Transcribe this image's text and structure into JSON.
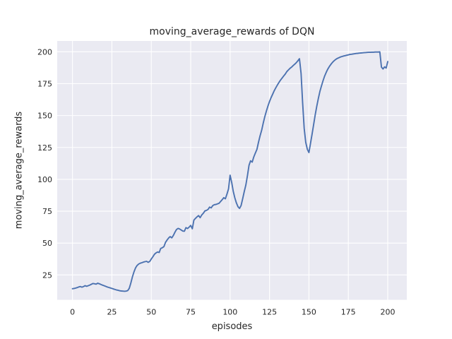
{
  "chart_data": {
    "type": "line",
    "title": "moving_average_rewards of DQN",
    "xlabel": "episodes",
    "ylabel": "moving_average_rewards",
    "x_ticks": [
      0,
      25,
      50,
      75,
      100,
      125,
      150,
      175,
      200
    ],
    "y_ticks": [
      25,
      50,
      75,
      100,
      125,
      150,
      175,
      200
    ],
    "xlim": [
      -9.7,
      212.1
    ],
    "ylim": [
      5.5,
      208.5
    ],
    "grid": true,
    "legend_position": "none",
    "line_color": "#4c72b0",
    "plot_bg_color": "#eaeaf2",
    "grid_color": "#ffffff",
    "text_color": "#262626",
    "series": [
      {
        "name": "moving_average_rewards",
        "x_start": 0,
        "x_step": 1,
        "values": [
          14.2,
          14.4,
          14.7,
          15.1,
          15.6,
          15.9,
          15.4,
          15.9,
          16.6,
          16.1,
          16.6,
          17.1,
          17.7,
          18.3,
          18.1,
          17.8,
          18.5,
          18.1,
          17.5,
          17.0,
          16.6,
          16.1,
          15.6,
          15.2,
          14.8,
          14.4,
          14.0,
          13.6,
          13.2,
          12.9,
          12.6,
          12.4,
          12.3,
          12.2,
          12.3,
          12.7,
          14.5,
          18.5,
          23.5,
          27.4,
          30.5,
          32.4,
          33.6,
          34.2,
          34.6,
          35.1,
          35.4,
          35.7,
          34.9,
          35.6,
          37.5,
          39.3,
          41.2,
          42.3,
          43.0,
          42.6,
          45.8,
          46.4,
          47.2,
          50.5,
          52.4,
          54.0,
          55.1,
          54.1,
          56.0,
          58.5,
          60.6,
          61.5,
          61.0,
          60.2,
          59.4,
          59.3,
          62.1,
          61.4,
          62.5,
          63.8,
          61.2,
          67.9,
          69.3,
          70.6,
          71.6,
          69.9,
          72.1,
          73.4,
          75.2,
          75.6,
          76.4,
          78.2,
          77.6,
          79.4,
          80.1,
          80.3,
          80.8,
          81.2,
          82.6,
          84.1,
          85.6,
          84.7,
          88.5,
          92.5,
          103.2,
          97.5,
          90.5,
          85.5,
          81.5,
          78.5,
          77.2,
          79.5,
          85.0,
          90.5,
          95.5,
          103.0,
          111.0,
          114.5,
          113.5,
          117.5,
          120.5,
          123.5,
          129.0,
          134.0,
          138.5,
          144.0,
          149.0,
          153.5,
          157.5,
          161.0,
          164.0,
          166.8,
          169.5,
          171.8,
          174.0,
          176.0,
          177.8,
          179.5,
          181.0,
          182.5,
          184.5,
          185.8,
          187.0,
          188.0,
          189.2,
          190.3,
          191.5,
          193.0,
          194.6,
          183.0,
          160.0,
          140.0,
          129.0,
          123.5,
          121.0,
          128.0,
          135.5,
          143.0,
          150.5,
          157.5,
          163.5,
          169.0,
          173.5,
          177.5,
          181.0,
          184.0,
          186.5,
          188.5,
          190.3,
          191.8,
          193.0,
          194.0,
          194.8,
          195.4,
          195.9,
          196.3,
          196.7,
          197.0,
          197.3,
          197.6,
          197.9,
          198.1,
          198.3,
          198.5,
          198.7,
          198.8,
          199.0,
          199.1,
          199.2,
          199.3,
          199.4,
          199.5,
          199.6,
          199.6,
          199.7,
          199.7,
          199.8,
          199.8,
          199.8,
          199.9,
          188.0,
          186.5,
          188.2,
          187.3,
          192.3
        ]
      }
    ]
  }
}
